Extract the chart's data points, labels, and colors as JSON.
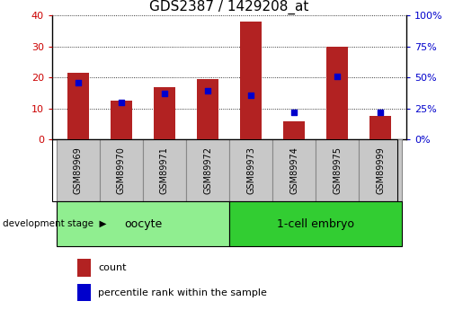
{
  "title": "GDS2387 / 1429208_at",
  "samples": [
    "GSM89969",
    "GSM89970",
    "GSM89971",
    "GSM89972",
    "GSM89973",
    "GSM89974",
    "GSM89975",
    "GSM89999"
  ],
  "counts": [
    21.5,
    12.5,
    17,
    19.5,
    38,
    6,
    30,
    7.5
  ],
  "percentile_ranks": [
    46,
    30,
    37,
    39,
    36,
    22,
    51,
    22
  ],
  "groups": [
    {
      "label": "oocyte",
      "indices": [
        0,
        1,
        2,
        3
      ],
      "color": "#90EE90"
    },
    {
      "label": "1-cell embryo",
      "indices": [
        4,
        5,
        6,
        7
      ],
      "color": "#32CD32"
    }
  ],
  "bar_color": "#B22222",
  "dot_color": "#0000CC",
  "ylim_left": [
    0,
    40
  ],
  "ylim_right": [
    0,
    100
  ],
  "yticks_left": [
    0,
    10,
    20,
    30,
    40
  ],
  "yticks_right": [
    0,
    25,
    50,
    75,
    100
  ],
  "left_axis_color": "#CC0000",
  "right_axis_color": "#0000CC",
  "grid_color": "#000000",
  "bar_width": 0.5,
  "title_fontsize": 11,
  "group_label_fontsize": 9,
  "sample_fontsize": 7,
  "dev_stage_label": "development stage",
  "legend_count_label": "count",
  "legend_percentile_label": "percentile rank within the sample",
  "sample_box_color": "#C8C8C8",
  "sample_box_edge_color": "#888888"
}
